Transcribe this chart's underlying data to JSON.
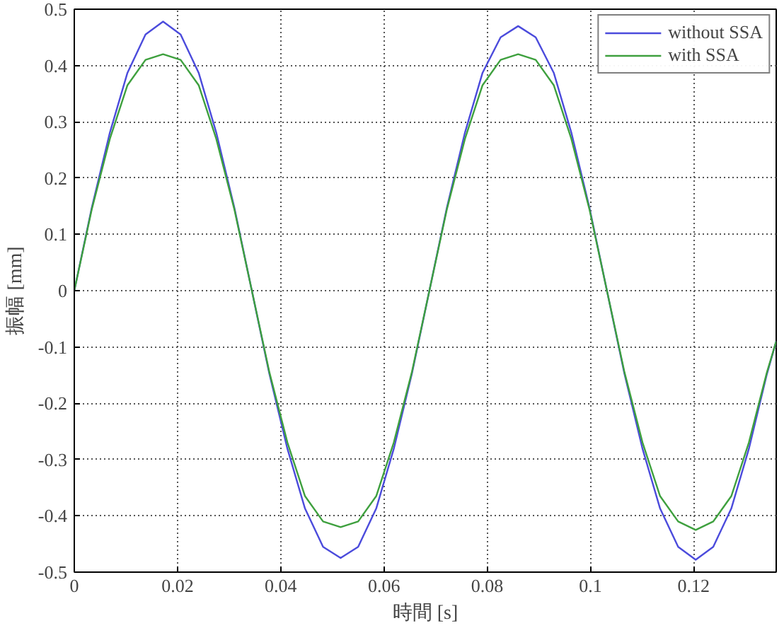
{
  "chart_data": {
    "type": "line",
    "xlabel": "時間 [s]",
    "ylabel": "振幅 [mm]",
    "x": [
      0,
      0.0034,
      0.0069,
      0.0103,
      0.0138,
      0.0172,
      0.0206,
      0.0241,
      0.0275,
      0.031,
      0.0344,
      0.0378,
      0.0413,
      0.0447,
      0.0482,
      0.0516,
      0.055,
      0.0585,
      0.0619,
      0.0654,
      0.0688,
      0.0722,
      0.0757,
      0.0791,
      0.0826,
      0.086,
      0.0894,
      0.0929,
      0.0963,
      0.0998,
      0.1032,
      0.1066,
      0.1101,
      0.1135,
      0.117,
      0.1204,
      0.1238,
      0.1273,
      0.1307,
      0.1342,
      0.136
    ],
    "series": [
      {
        "name": "without SSA",
        "color": "#4b4bdc",
        "values": [
          0,
          0.148,
          0.281,
          0.387,
          0.455,
          0.478,
          0.455,
          0.387,
          0.281,
          0.148,
          0,
          -0.148,
          -0.281,
          -0.387,
          -0.455,
          -0.475,
          -0.455,
          -0.387,
          -0.281,
          -0.148,
          0,
          0.148,
          0.281,
          0.387,
          0.45,
          0.47,
          0.45,
          0.387,
          0.281,
          0.148,
          0,
          -0.148,
          -0.281,
          -0.387,
          -0.455,
          -0.478,
          -0.455,
          -0.387,
          -0.281,
          -0.148,
          -0.09
        ]
      },
      {
        "name": "with SSA",
        "color": "#3ea03e",
        "values": [
          0,
          0.145,
          0.27,
          0.365,
          0.41,
          0.42,
          0.41,
          0.365,
          0.27,
          0.145,
          0,
          -0.145,
          -0.27,
          -0.365,
          -0.41,
          -0.42,
          -0.41,
          -0.365,
          -0.27,
          -0.145,
          0,
          0.145,
          0.27,
          0.365,
          0.41,
          0.42,
          0.41,
          0.365,
          0.27,
          0.145,
          0,
          -0.145,
          -0.27,
          -0.365,
          -0.41,
          -0.425,
          -0.41,
          -0.365,
          -0.27,
          -0.145,
          -0.09
        ]
      }
    ],
    "xlim": [
      0,
      0.136
    ],
    "ylim": [
      -0.5,
      0.5
    ],
    "xticks": [
      0,
      0.02,
      0.04,
      0.06,
      0.08,
      0.1,
      0.12
    ],
    "yticks": [
      -0.5,
      -0.4,
      -0.3,
      -0.2,
      -0.1,
      0,
      0.1,
      0.2,
      0.3,
      0.4,
      0.5
    ],
    "grid": true,
    "legend": "top right",
    "marker": "none",
    "line_style": "solid"
  }
}
